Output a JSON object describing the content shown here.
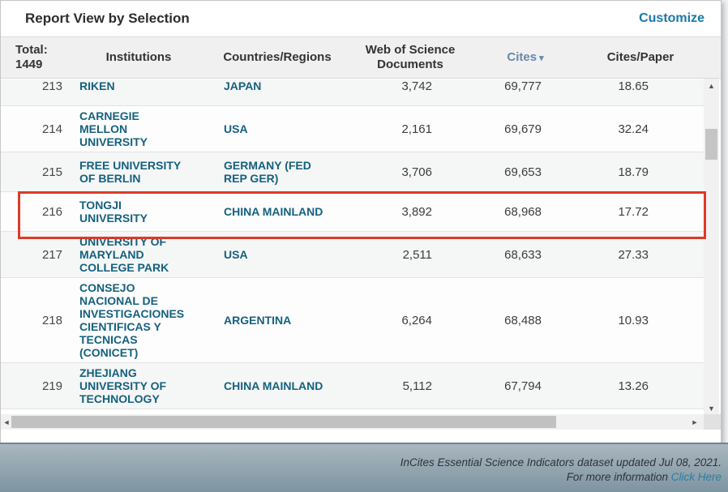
{
  "titlebar": {
    "title": "Report View by Selection",
    "customize_label": "Customize"
  },
  "table": {
    "columns": {
      "total_line1": "Total:",
      "total_line2": "1449",
      "institutions": "Institutions",
      "countries": "Countries/Regions",
      "wos_docs_line1": "Web of Science",
      "wos_docs_line2": "Documents",
      "cites": "Cites",
      "cites_paper": "Cites/Paper"
    },
    "sort": {
      "sorted_column": "Cites",
      "direction": "descending"
    },
    "rows": [
      {
        "rank": "213",
        "institution": "RIKEN",
        "country": "JAPAN",
        "docs": "3,742",
        "cites": "69,777",
        "cites_per_paper": "18.65",
        "highlighted": false
      },
      {
        "rank": "214",
        "institution": "CARNEGIE MELLON UNIVERSITY",
        "country": "USA",
        "docs": "2,161",
        "cites": "69,679",
        "cites_per_paper": "32.24",
        "highlighted": false
      },
      {
        "rank": "215",
        "institution": "FREE UNIVERSITY OF BERLIN",
        "country": "GERMANY (FED REP GER)",
        "docs": "3,706",
        "cites": "69,653",
        "cites_per_paper": "18.79",
        "highlighted": false
      },
      {
        "rank": "216",
        "institution": "TONGJI UNIVERSITY",
        "country": "CHINA MAINLAND",
        "docs": "3,892",
        "cites": "68,968",
        "cites_per_paper": "17.72",
        "highlighted": true
      },
      {
        "rank": "217",
        "institution": "UNIVERSITY OF MARYLAND COLLEGE PARK",
        "country": "USA",
        "docs": "2,511",
        "cites": "68,633",
        "cites_per_paper": "27.33",
        "highlighted": false
      },
      {
        "rank": "218",
        "institution": "CONSEJO NACIONAL DE INVESTIGACIONES CIENTIFICAS Y TECNICAS (CONICET)",
        "country": "ARGENTINA",
        "docs": "6,264",
        "cites": "68,488",
        "cites_per_paper": "10.93",
        "highlighted": false
      },
      {
        "rank": "219",
        "institution": "ZHEJIANG UNIVERSITY OF TECHNOLOGY",
        "country": "CHINA MAINLAND",
        "docs": "5,112",
        "cites": "67,794",
        "cites_per_paper": "13.26",
        "highlighted": false
      }
    ]
  },
  "footer": {
    "line1": "InCites Essential Science Indicators dataset updated Jul 08, 2021.",
    "line2_prefix": "For more information ",
    "link_label": "Click Here"
  },
  "icons": {
    "sort_down": "▾",
    "scroll_up": "▲",
    "scroll_down": "▼",
    "scroll_left": "◄",
    "scroll_right": "►"
  },
  "colors": {
    "institution_link": "#14617e",
    "customize_link": "#1878a8",
    "cites_header": "#6888aa",
    "highlight_red": "#dc3a26",
    "footer_link": "#2a7f9e"
  }
}
